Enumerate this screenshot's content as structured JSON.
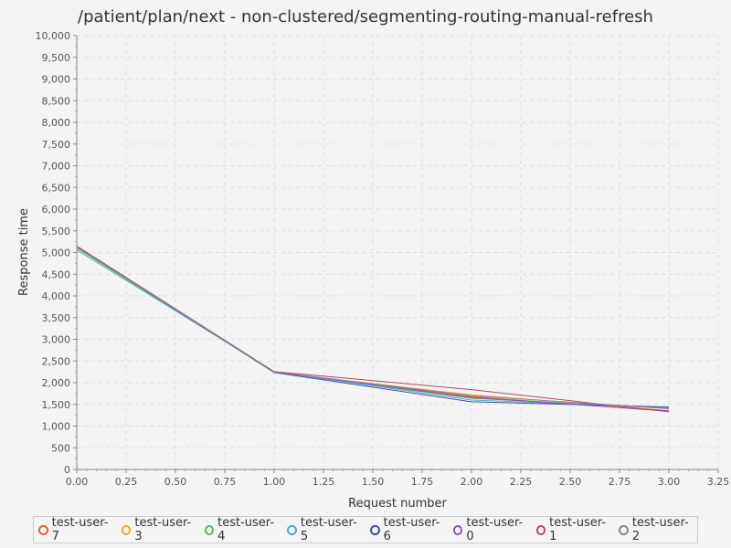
{
  "chart_data": {
    "type": "line",
    "title": "/patient/plan/next - non-clustered/segmenting-routing-manual-refresh",
    "xlabel": "Request number",
    "ylabel": "Response time",
    "xlim": [
      0,
      3.25
    ],
    "ylim": [
      0,
      10000
    ],
    "x_ticks": [
      "0.00",
      "0.25",
      "0.50",
      "0.75",
      "1.00",
      "1.25",
      "1.50",
      "1.75",
      "2.00",
      "2.25",
      "2.50",
      "2.75",
      "3.00",
      "3.25"
    ],
    "y_ticks": [
      "0",
      "500",
      "1,000",
      "1,500",
      "2,000",
      "2,500",
      "3,000",
      "3,500",
      "4,000",
      "4,500",
      "5,000",
      "5,500",
      "6,000",
      "6,500",
      "7,000",
      "7,500",
      "8,000",
      "8,500",
      "9,000",
      "9,500",
      "10,000"
    ],
    "grid": true,
    "legend_position": "bottom",
    "x": [
      0,
      1,
      2,
      3
    ],
    "series": [
      {
        "name": "test-user-7",
        "color": "#e8603a",
        "values": [
          5120,
          2250,
          1680,
          1340
        ]
      },
      {
        "name": "test-user-3",
        "color": "#f0a830",
        "values": [
          5110,
          2240,
          1720,
          1360
        ]
      },
      {
        "name": "test-user-4",
        "color": "#5cb85c",
        "values": [
          5100,
          2245,
          1640,
          1420
        ]
      },
      {
        "name": "test-user-5",
        "color": "#4ab0c8",
        "values": [
          5060,
          2255,
          1600,
          1430
        ]
      },
      {
        "name": "test-user-6",
        "color": "#3c50a8",
        "values": [
          5130,
          2235,
          1560,
          1440
        ]
      },
      {
        "name": "test-user-0",
        "color": "#9050c0",
        "values": [
          5140,
          2250,
          1660,
          1350
        ]
      },
      {
        "name": "test-user-1",
        "color": "#b04860",
        "values": [
          5150,
          2255,
          1840,
          1330
        ]
      },
      {
        "name": "test-user-2",
        "color": "#888888",
        "values": [
          5125,
          2248,
          1700,
          1400
        ]
      }
    ]
  }
}
